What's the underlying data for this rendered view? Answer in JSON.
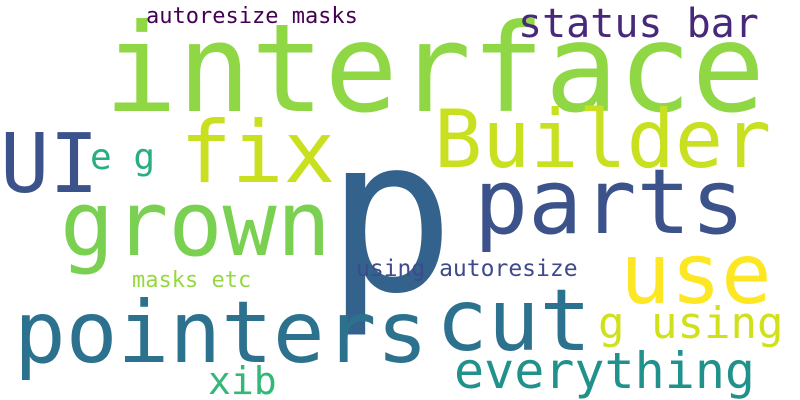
{
  "words": {
    "interface": {
      "text": "interface",
      "color": "#8fd744"
    },
    "p": {
      "text": "p",
      "color": "#33638d"
    },
    "builder": {
      "text": "Builder",
      "color": "#c8e020"
    },
    "fix": {
      "text": "fix",
      "color": "#c8e020"
    },
    "grown": {
      "text": "grown",
      "color": "#7ad151"
    },
    "ui": {
      "text": "UI",
      "color": "#3b528b"
    },
    "parts": {
      "text": "parts",
      "color": "#3b528b"
    },
    "pointers": {
      "text": "pointers",
      "color": "#2c728e"
    },
    "cut": {
      "text": "cut",
      "color": "#2c728e"
    },
    "use": {
      "text": "use",
      "color": "#fde725"
    },
    "status_bar": {
      "text": "status bar",
      "color": "#482878"
    },
    "autoresize_masks": {
      "text": "autoresize masks",
      "color": "#440154"
    },
    "everything": {
      "text": "everything",
      "color": "#21918c"
    },
    "g_using": {
      "text": "g using",
      "color": "#d0e11c"
    },
    "xib": {
      "text": "xib",
      "color": "#35b779"
    },
    "using_autoresize": {
      "text": "using autoresize",
      "color": "#3e4a89"
    },
    "masks_etc": {
      "text": "masks etc",
      "color": "#95d840"
    },
    "e_g": {
      "text": "e g",
      "color": "#29af7f"
    }
  }
}
